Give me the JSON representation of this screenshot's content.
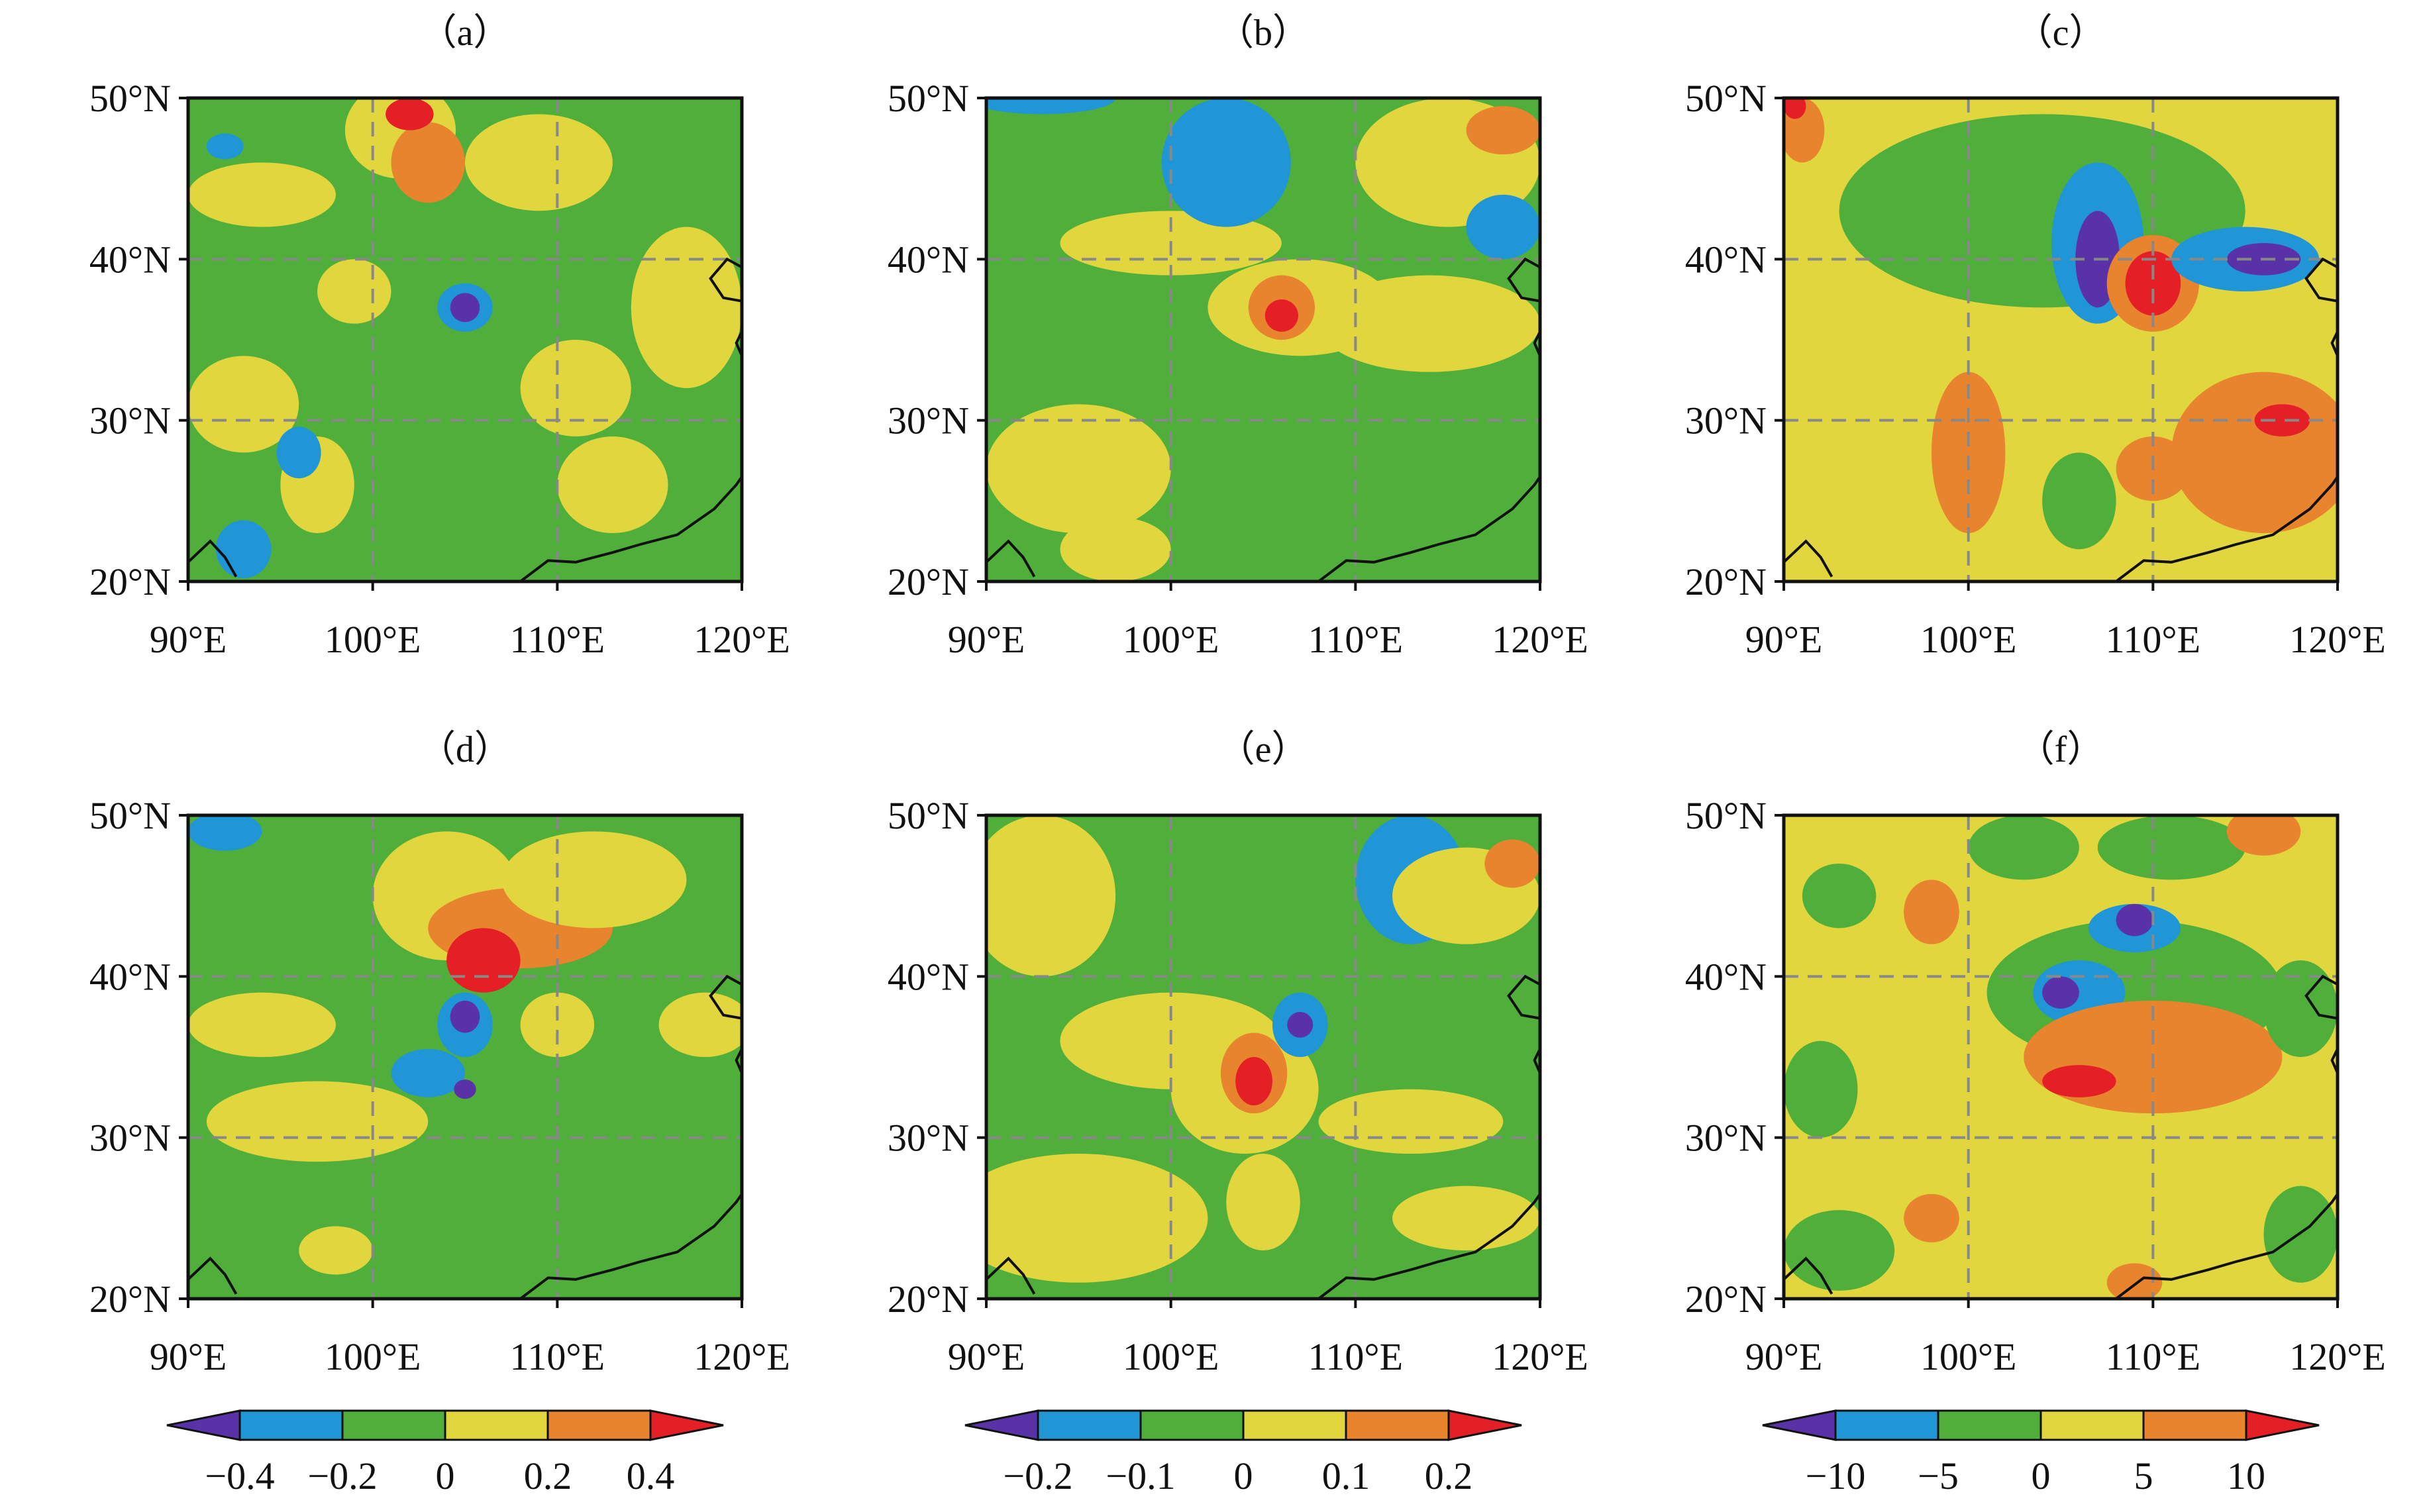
{
  "panel_titles": [
    "（a）",
    "（b）",
    "（c）",
    "（d）",
    "（e）",
    "（f）"
  ],
  "lat_labels": [
    "50°N",
    "40°N",
    "30°N",
    "20°N"
  ],
  "lon_labels": [
    "90°E",
    "100°E",
    "110°E",
    "120°E"
  ],
  "colorbars": [
    {
      "ticks": [
        "−0.4",
        "−0.2",
        "0",
        "0.2",
        "0.4"
      ]
    },
    {
      "ticks": [
        "−0.2",
        "−0.1",
        "0",
        "0.1",
        "0.2"
      ]
    },
    {
      "ticks": [
        "−10",
        "−5",
        "0",
        "5",
        "10"
      ]
    }
  ],
  "palette": {
    "dark_purple": "#5a32a8",
    "blue": "#2196d6",
    "green": "#4faf3a",
    "yellow": "#e2d63e",
    "orange": "#e8832e",
    "red": "#e41f25",
    "coast": "#111111",
    "grid": "#888888"
  },
  "map_extent": {
    "lon": [
      90,
      120
    ],
    "lat": [
      20,
      50
    ]
  },
  "panels": [
    {
      "name": "a",
      "background": "green",
      "blobs": [
        {
          "lon": 101.5,
          "lat": 48,
          "rx": 3,
          "ry": 3,
          "color": "yellow"
        },
        {
          "lon": 103,
          "lat": 46,
          "rx": 2,
          "ry": 2.5,
          "color": "orange"
        },
        {
          "lon": 102,
          "lat": 49,
          "rx": 1.3,
          "ry": 1,
          "color": "red"
        },
        {
          "lon": 109,
          "lat": 46,
          "rx": 4,
          "ry": 3,
          "color": "yellow"
        },
        {
          "lon": 94,
          "lat": 44,
          "rx": 4,
          "ry": 2,
          "color": "yellow"
        },
        {
          "lon": 99,
          "lat": 38,
          "rx": 2,
          "ry": 2,
          "color": "yellow"
        },
        {
          "lon": 105,
          "lat": 37,
          "rx": 1.5,
          "ry": 1.5,
          "color": "blue"
        },
        {
          "lon": 105,
          "lat": 37,
          "rx": 0.8,
          "ry": 0.9,
          "color": "dark_purple"
        },
        {
          "lon": 117,
          "lat": 37,
          "rx": 3,
          "ry": 5,
          "color": "yellow"
        },
        {
          "lon": 111,
          "lat": 32,
          "rx": 3,
          "ry": 3,
          "color": "yellow"
        },
        {
          "lon": 93,
          "lat": 31,
          "rx": 3,
          "ry": 3,
          "color": "yellow"
        },
        {
          "lon": 97,
          "lat": 26,
          "rx": 2,
          "ry": 3,
          "color": "yellow"
        },
        {
          "lon": 96,
          "lat": 28,
          "rx": 1.2,
          "ry": 1.6,
          "color": "blue"
        },
        {
          "lon": 93,
          "lat": 22,
          "rx": 1.5,
          "ry": 1.8,
          "color": "blue"
        },
        {
          "lon": 113,
          "lat": 26,
          "rx": 3,
          "ry": 3,
          "color": "yellow"
        },
        {
          "lon": 92,
          "lat": 47,
          "rx": 1,
          "ry": 0.8,
          "color": "blue"
        }
      ]
    },
    {
      "name": "b",
      "background": "green",
      "blobs": [
        {
          "lon": 100,
          "lat": 41,
          "rx": 6,
          "ry": 2,
          "color": "yellow"
        },
        {
          "lon": 107,
          "lat": 37,
          "rx": 5,
          "ry": 3,
          "color": "yellow"
        },
        {
          "lon": 114,
          "lat": 36,
          "rx": 6,
          "ry": 3,
          "color": "yellow"
        },
        {
          "lon": 106,
          "lat": 37,
          "rx": 1.8,
          "ry": 2,
          "color": "orange"
        },
        {
          "lon": 106,
          "lat": 36.5,
          "rx": 0.9,
          "ry": 1,
          "color": "red"
        },
        {
          "lon": 103,
          "lat": 46,
          "rx": 3.5,
          "ry": 4,
          "color": "blue"
        },
        {
          "lon": 115,
          "lat": 46,
          "rx": 5,
          "ry": 4,
          "color": "yellow"
        },
        {
          "lon": 118,
          "lat": 48,
          "rx": 2,
          "ry": 1.5,
          "color": "orange"
        },
        {
          "lon": 118,
          "lat": 42,
          "rx": 2,
          "ry": 2,
          "color": "blue"
        },
        {
          "lon": 95,
          "lat": 27,
          "rx": 5,
          "ry": 4,
          "color": "yellow"
        },
        {
          "lon": 97,
          "lat": 22,
          "rx": 3,
          "ry": 2,
          "color": "yellow"
        },
        {
          "lon": 93,
          "lat": 50,
          "rx": 4,
          "ry": 1,
          "color": "blue"
        }
      ]
    },
    {
      "name": "c",
      "background": "yellow",
      "blobs": [
        {
          "lon": 104,
          "lat": 43,
          "rx": 11,
          "ry": 6,
          "color": "green"
        },
        {
          "lon": 107,
          "lat": 41,
          "rx": 2.5,
          "ry": 5,
          "color": "blue"
        },
        {
          "lon": 107,
          "lat": 40,
          "rx": 1.2,
          "ry": 3,
          "color": "dark_purple"
        },
        {
          "lon": 110,
          "lat": 38.5,
          "rx": 2.5,
          "ry": 3,
          "color": "orange"
        },
        {
          "lon": 110,
          "lat": 38.5,
          "rx": 1.5,
          "ry": 2,
          "color": "red"
        },
        {
          "lon": 115,
          "lat": 40,
          "rx": 4,
          "ry": 2,
          "color": "blue"
        },
        {
          "lon": 116,
          "lat": 40,
          "rx": 2,
          "ry": 1,
          "color": "dark_purple"
        },
        {
          "lon": 100,
          "lat": 28,
          "rx": 2,
          "ry": 5,
          "color": "orange"
        },
        {
          "lon": 116,
          "lat": 28,
          "rx": 5,
          "ry": 5,
          "color": "orange"
        },
        {
          "lon": 117,
          "lat": 30,
          "rx": 1.5,
          "ry": 1,
          "color": "red"
        },
        {
          "lon": 110,
          "lat": 27,
          "rx": 2,
          "ry": 2,
          "color": "orange"
        },
        {
          "lon": 106,
          "lat": 25,
          "rx": 2,
          "ry": 3,
          "color": "green"
        },
        {
          "lon": 91,
          "lat": 48,
          "rx": 1.2,
          "ry": 2,
          "color": "orange"
        },
        {
          "lon": 90.6,
          "lat": 49.5,
          "rx": 0.6,
          "ry": 0.8,
          "color": "red"
        }
      ]
    },
    {
      "name": "d",
      "background": "green",
      "blobs": [
        {
          "lon": 104,
          "lat": 45,
          "rx": 4,
          "ry": 4,
          "color": "yellow"
        },
        {
          "lon": 108,
          "lat": 43,
          "rx": 5,
          "ry": 2.5,
          "color": "orange"
        },
        {
          "lon": 106,
          "lat": 41,
          "rx": 2,
          "ry": 2,
          "color": "red"
        },
        {
          "lon": 112,
          "lat": 46,
          "rx": 5,
          "ry": 3,
          "color": "yellow"
        },
        {
          "lon": 105,
          "lat": 37,
          "rx": 1.5,
          "ry": 2,
          "color": "blue"
        },
        {
          "lon": 105,
          "lat": 37.5,
          "rx": 0.8,
          "ry": 1,
          "color": "dark_purple"
        },
        {
          "lon": 103,
          "lat": 34,
          "rx": 2,
          "ry": 1.5,
          "color": "blue"
        },
        {
          "lon": 105,
          "lat": 33,
          "rx": 0.6,
          "ry": 0.6,
          "color": "dark_purple"
        },
        {
          "lon": 97,
          "lat": 31,
          "rx": 6,
          "ry": 2.5,
          "color": "yellow"
        },
        {
          "lon": 94,
          "lat": 37,
          "rx": 4,
          "ry": 2,
          "color": "yellow"
        },
        {
          "lon": 110,
          "lat": 37,
          "rx": 2,
          "ry": 2,
          "color": "yellow"
        },
        {
          "lon": 118,
          "lat": 37,
          "rx": 2.5,
          "ry": 2,
          "color": "yellow"
        },
        {
          "lon": 98,
          "lat": 23,
          "rx": 2,
          "ry": 1.5,
          "color": "yellow"
        },
        {
          "lon": 92,
          "lat": 49,
          "rx": 2,
          "ry": 1.2,
          "color": "blue"
        }
      ]
    },
    {
      "name": "e",
      "background": "green",
      "blobs": [
        {
          "lon": 93,
          "lat": 45,
          "rx": 4,
          "ry": 5,
          "color": "yellow"
        },
        {
          "lon": 100,
          "lat": 36,
          "rx": 6,
          "ry": 3,
          "color": "yellow"
        },
        {
          "lon": 104,
          "lat": 33,
          "rx": 4,
          "ry": 4,
          "color": "yellow"
        },
        {
          "lon": 104.5,
          "lat": 34,
          "rx": 1.8,
          "ry": 2.5,
          "color": "orange"
        },
        {
          "lon": 104.5,
          "lat": 33.5,
          "rx": 1,
          "ry": 1.5,
          "color": "red"
        },
        {
          "lon": 107,
          "lat": 37,
          "rx": 1.5,
          "ry": 2,
          "color": "blue"
        },
        {
          "lon": 107,
          "lat": 37,
          "rx": 0.7,
          "ry": 0.8,
          "color": "dark_purple"
        },
        {
          "lon": 113,
          "lat": 46,
          "rx": 3,
          "ry": 4,
          "color": "blue"
        },
        {
          "lon": 116,
          "lat": 45,
          "rx": 4,
          "ry": 3,
          "color": "yellow"
        },
        {
          "lon": 118.5,
          "lat": 47,
          "rx": 1.5,
          "ry": 1.5,
          "color": "orange"
        },
        {
          "lon": 95,
          "lat": 25,
          "rx": 7,
          "ry": 4,
          "color": "yellow"
        },
        {
          "lon": 113,
          "lat": 31,
          "rx": 5,
          "ry": 2,
          "color": "yellow"
        },
        {
          "lon": 116,
          "lat": 25,
          "rx": 4,
          "ry": 2,
          "color": "yellow"
        },
        {
          "lon": 105,
          "lat": 26,
          "rx": 2,
          "ry": 3,
          "color": "yellow"
        }
      ]
    },
    {
      "name": "f",
      "background": "yellow",
      "blobs": [
        {
          "lon": 109,
          "lat": 39,
          "rx": 8,
          "ry": 4.5,
          "color": "green"
        },
        {
          "lon": 106,
          "lat": 39,
          "rx": 2.5,
          "ry": 2,
          "color": "blue"
        },
        {
          "lon": 105,
          "lat": 39,
          "rx": 1,
          "ry": 1,
          "color": "dark_purple"
        },
        {
          "lon": 109,
          "lat": 43,
          "rx": 2.5,
          "ry": 1.5,
          "color": "blue"
        },
        {
          "lon": 109,
          "lat": 43.5,
          "rx": 1,
          "ry": 1,
          "color": "dark_purple"
        },
        {
          "lon": 110,
          "lat": 35,
          "rx": 7,
          "ry": 3.5,
          "color": "orange"
        },
        {
          "lon": 106,
          "lat": 33.5,
          "rx": 2,
          "ry": 1,
          "color": "red"
        },
        {
          "lon": 93,
          "lat": 45,
          "rx": 2,
          "ry": 2,
          "color": "green"
        },
        {
          "lon": 103,
          "lat": 48,
          "rx": 3,
          "ry": 2,
          "color": "green"
        },
        {
          "lon": 111,
          "lat": 48,
          "rx": 4,
          "ry": 2,
          "color": "green"
        },
        {
          "lon": 116,
          "lat": 49,
          "rx": 2,
          "ry": 1.5,
          "color": "orange"
        },
        {
          "lon": 98,
          "lat": 44,
          "rx": 1.5,
          "ry": 2,
          "color": "orange"
        },
        {
          "lon": 118,
          "lat": 38,
          "rx": 2,
          "ry": 3,
          "color": "green"
        },
        {
          "lon": 98,
          "lat": 25,
          "rx": 1.5,
          "ry": 1.5,
          "color": "orange"
        },
        {
          "lon": 109,
          "lat": 21,
          "rx": 1.5,
          "ry": 1.2,
          "color": "orange"
        },
        {
          "lon": 93,
          "lat": 23,
          "rx": 3,
          "ry": 2.5,
          "color": "green"
        },
        {
          "lon": 118,
          "lat": 24,
          "rx": 2,
          "ry": 3,
          "color": "green"
        },
        {
          "lon": 92,
          "lat": 33,
          "rx": 2,
          "ry": 3,
          "color": "green"
        }
      ]
    }
  ]
}
